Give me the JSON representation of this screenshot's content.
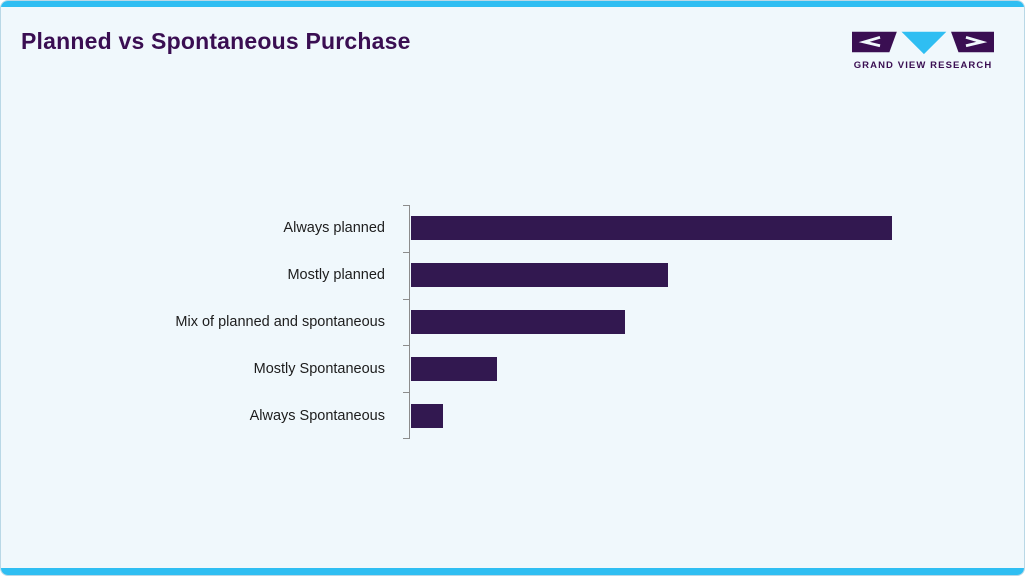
{
  "page": {
    "background": "#f0f8fc",
    "accent_cyan": "#2fbef2",
    "brand_purple": "#3a0e52"
  },
  "header": {
    "title": "Planned vs Spontaneous Purchase",
    "logo_text": "GRAND VIEW RESEARCH"
  },
  "chart_data": {
    "type": "bar",
    "orientation": "horizontal",
    "title": "Planned vs Spontaneous Purchase",
    "categories": [
      "Always planned",
      "Mostly planned",
      "Mix of planned and spontaneous",
      "Mostly Spontaneous",
      "Always Spontaneous"
    ],
    "values": [
      45,
      24,
      20,
      8,
      3
    ],
    "values_estimated": true,
    "xlabel": "",
    "ylabel": "",
    "xlim": [
      0,
      45
    ],
    "grid": false,
    "legend": false,
    "bar_color": "#321850",
    "axis_color": "#8c8c8c"
  }
}
